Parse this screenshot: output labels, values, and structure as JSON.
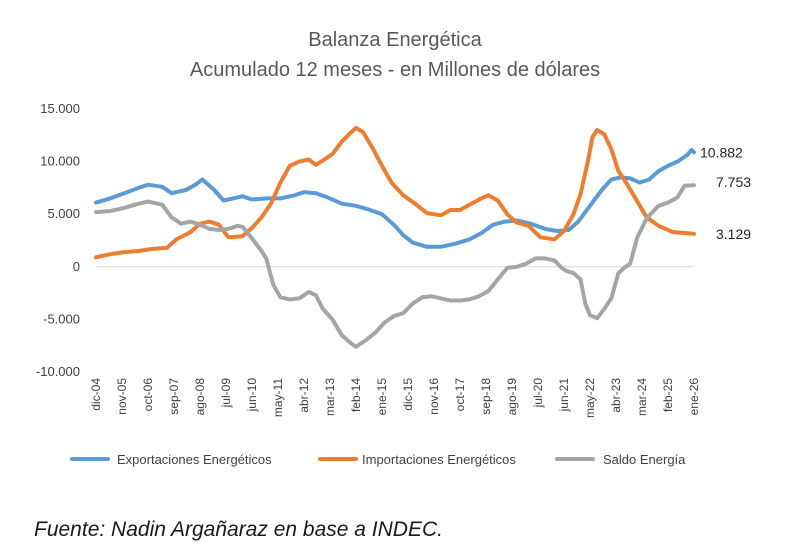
{
  "chart_data": {
    "type": "line",
    "title": "Balanza Energética",
    "subtitle": "Acumulado 12 meses - en Millones de dólares",
    "ylim": [
      -10000,
      15000
    ],
    "yticks": [
      {
        "value": 15000,
        "label": "15.000"
      },
      {
        "value": 10000,
        "label": "10.000"
      },
      {
        "value": 5000,
        "label": "5.000"
      },
      {
        "value": 0,
        "label": "0"
      },
      {
        "value": -5000,
        "label": "-5.000"
      },
      {
        "value": -10000,
        "label": "-10.000"
      }
    ],
    "grid": false,
    "legend_position": "bottom",
    "x_start": "dic-04",
    "x_end": "ene-26",
    "xticks": [
      {
        "t": 0,
        "label": "dic-04"
      },
      {
        "t": 11,
        "label": "nov-05"
      },
      {
        "t": 22,
        "label": "oct-06"
      },
      {
        "t": 33,
        "label": "sep-07"
      },
      {
        "t": 44,
        "label": "ago-08"
      },
      {
        "t": 55,
        "label": "jul-09"
      },
      {
        "t": 66,
        "label": "jun-10"
      },
      {
        "t": 77,
        "label": "may-11"
      },
      {
        "t": 88,
        "label": "abr-12"
      },
      {
        "t": 99,
        "label": "mar-13"
      },
      {
        "t": 110,
        "label": "feb-14"
      },
      {
        "t": 121,
        "label": "ene-15"
      },
      {
        "t": 132,
        "label": "dic-15"
      },
      {
        "t": 143,
        "label": "nov-16"
      },
      {
        "t": 154,
        "label": "oct-17"
      },
      {
        "t": 165,
        "label": "sep-18"
      },
      {
        "t": 176,
        "label": "ago-19"
      },
      {
        "t": 187,
        "label": "jul-20"
      },
      {
        "t": 198,
        "label": "jun-21"
      },
      {
        "t": 209,
        "label": "may-22"
      },
      {
        "t": 220,
        "label": "abr-23"
      },
      {
        "t": 231,
        "label": "mar-24"
      },
      {
        "t": 242,
        "label": "feb-25"
      },
      {
        "t": 253,
        "label": "ene-26"
      }
    ],
    "series": [
      {
        "name": "Exportaciones Energéticos",
        "color": "#5B9BD5",
        "end_label": "10.882",
        "points": [
          [
            0,
            6100
          ],
          [
            6,
            6500
          ],
          [
            12,
            7000
          ],
          [
            18,
            7500
          ],
          [
            22,
            7800
          ],
          [
            28,
            7600
          ],
          [
            32,
            7000
          ],
          [
            38,
            7300
          ],
          [
            42,
            7800
          ],
          [
            45,
            8300
          ],
          [
            50,
            7300
          ],
          [
            54,
            6300
          ],
          [
            58,
            6500
          ],
          [
            62,
            6700
          ],
          [
            66,
            6400
          ],
          [
            72,
            6500
          ],
          [
            78,
            6500
          ],
          [
            84,
            6800
          ],
          [
            88,
            7100
          ],
          [
            93,
            7000
          ],
          [
            98,
            6600
          ],
          [
            104,
            6000
          ],
          [
            110,
            5800
          ],
          [
            116,
            5400
          ],
          [
            121,
            5000
          ],
          [
            126,
            4000
          ],
          [
            130,
            3000
          ],
          [
            134,
            2300
          ],
          [
            140,
            1900
          ],
          [
            146,
            1900
          ],
          [
            152,
            2200
          ],
          [
            158,
            2600
          ],
          [
            163,
            3200
          ],
          [
            168,
            4000
          ],
          [
            173,
            4300
          ],
          [
            178,
            4400
          ],
          [
            184,
            4100
          ],
          [
            190,
            3600
          ],
          [
            195,
            3400
          ],
          [
            200,
            3500
          ],
          [
            204,
            4300
          ],
          [
            209,
            5800
          ],
          [
            214,
            7300
          ],
          [
            218,
            8300
          ],
          [
            222,
            8500
          ],
          [
            226,
            8400
          ],
          [
            230,
            8000
          ],
          [
            234,
            8300
          ],
          [
            238,
            9100
          ],
          [
            242,
            9600
          ],
          [
            246,
            10000
          ],
          [
            250,
            10600
          ],
          [
            252,
            11100
          ],
          [
            253,
            10882
          ]
        ]
      },
      {
        "name": "Importaciones Energéticos",
        "color": "#ED7D31",
        "end_label": "3.129",
        "points": [
          [
            0,
            900
          ],
          [
            6,
            1200
          ],
          [
            12,
            1400
          ],
          [
            18,
            1500
          ],
          [
            24,
            1700
          ],
          [
            30,
            1800
          ],
          [
            34,
            2600
          ],
          [
            40,
            3300
          ],
          [
            44,
            4100
          ],
          [
            48,
            4300
          ],
          [
            52,
            4000
          ],
          [
            56,
            2800
          ],
          [
            62,
            2900
          ],
          [
            66,
            3700
          ],
          [
            70,
            4700
          ],
          [
            74,
            6000
          ],
          [
            78,
            8000
          ],
          [
            82,
            9600
          ],
          [
            86,
            10000
          ],
          [
            90,
            10200
          ],
          [
            93,
            9700
          ],
          [
            96,
            10100
          ],
          [
            100,
            10700
          ],
          [
            104,
            11900
          ],
          [
            108,
            12800
          ],
          [
            110,
            13200
          ],
          [
            113,
            12800
          ],
          [
            117,
            11300
          ],
          [
            121,
            9600
          ],
          [
            125,
            8000
          ],
          [
            130,
            6800
          ],
          [
            135,
            6000
          ],
          [
            140,
            5100
          ],
          [
            146,
            4900
          ],
          [
            150,
            5400
          ],
          [
            154,
            5400
          ],
          [
            158,
            5900
          ],
          [
            163,
            6500
          ],
          [
            166,
            6800
          ],
          [
            170,
            6300
          ],
          [
            174,
            5000
          ],
          [
            178,
            4200
          ],
          [
            183,
            3900
          ],
          [
            188,
            2800
          ],
          [
            194,
            2600
          ],
          [
            198,
            3400
          ],
          [
            202,
            5000
          ],
          [
            205,
            6900
          ],
          [
            208,
            9900
          ],
          [
            210,
            12300
          ],
          [
            212,
            13000
          ],
          [
            215,
            12600
          ],
          [
            218,
            11200
          ],
          [
            221,
            9100
          ],
          [
            224,
            8100
          ],
          [
            228,
            6600
          ],
          [
            233,
            4700
          ],
          [
            238,
            3900
          ],
          [
            244,
            3300
          ],
          [
            250,
            3200
          ],
          [
            253,
            3129
          ]
        ]
      },
      {
        "name": "Saldo Energía",
        "color": "#A5A5A5",
        "end_label": "7.753",
        "points": [
          [
            0,
            5200
          ],
          [
            6,
            5300
          ],
          [
            12,
            5600
          ],
          [
            18,
            6000
          ],
          [
            22,
            6200
          ],
          [
            28,
            5900
          ],
          [
            32,
            4700
          ],
          [
            36,
            4100
          ],
          [
            40,
            4300
          ],
          [
            44,
            4000
          ],
          [
            48,
            3600
          ],
          [
            52,
            3500
          ],
          [
            56,
            3600
          ],
          [
            60,
            3900
          ],
          [
            62,
            3800
          ],
          [
            66,
            2700
          ],
          [
            70,
            1500
          ],
          [
            72,
            800
          ],
          [
            75,
            -1700
          ],
          [
            78,
            -2900
          ],
          [
            82,
            -3100
          ],
          [
            86,
            -3000
          ],
          [
            90,
            -2400
          ],
          [
            93,
            -2700
          ],
          [
            96,
            -4000
          ],
          [
            100,
            -5000
          ],
          [
            104,
            -6500
          ],
          [
            108,
            -7300
          ],
          [
            110,
            -7600
          ],
          [
            114,
            -7000
          ],
          [
            118,
            -6300
          ],
          [
            122,
            -5300
          ],
          [
            126,
            -4700
          ],
          [
            130,
            -4400
          ],
          [
            134,
            -3500
          ],
          [
            138,
            -2900
          ],
          [
            142,
            -2800
          ],
          [
            146,
            -3000
          ],
          [
            150,
            -3200
          ],
          [
            154,
            -3200
          ],
          [
            158,
            -3100
          ],
          [
            162,
            -2800
          ],
          [
            166,
            -2300
          ],
          [
            170,
            -1200
          ],
          [
            174,
            -100
          ],
          [
            178,
            0
          ],
          [
            182,
            300
          ],
          [
            186,
            800
          ],
          [
            190,
            800
          ],
          [
            194,
            600
          ],
          [
            197,
            -100
          ],
          [
            199,
            -400
          ],
          [
            202,
            -600
          ],
          [
            205,
            -1200
          ],
          [
            207,
            -3500
          ],
          [
            209,
            -4600
          ],
          [
            212,
            -4900
          ],
          [
            215,
            -4000
          ],
          [
            218,
            -3000
          ],
          [
            221,
            -600
          ],
          [
            224,
            0
          ],
          [
            226,
            300
          ],
          [
            229,
            2800
          ],
          [
            233,
            4600
          ],
          [
            238,
            5800
          ],
          [
            242,
            6100
          ],
          [
            246,
            6600
          ],
          [
            249,
            7700
          ],
          [
            253,
            7753
          ]
        ]
      }
    ]
  },
  "source": "Fuente: Nadin Argañaraz en base a INDEC."
}
